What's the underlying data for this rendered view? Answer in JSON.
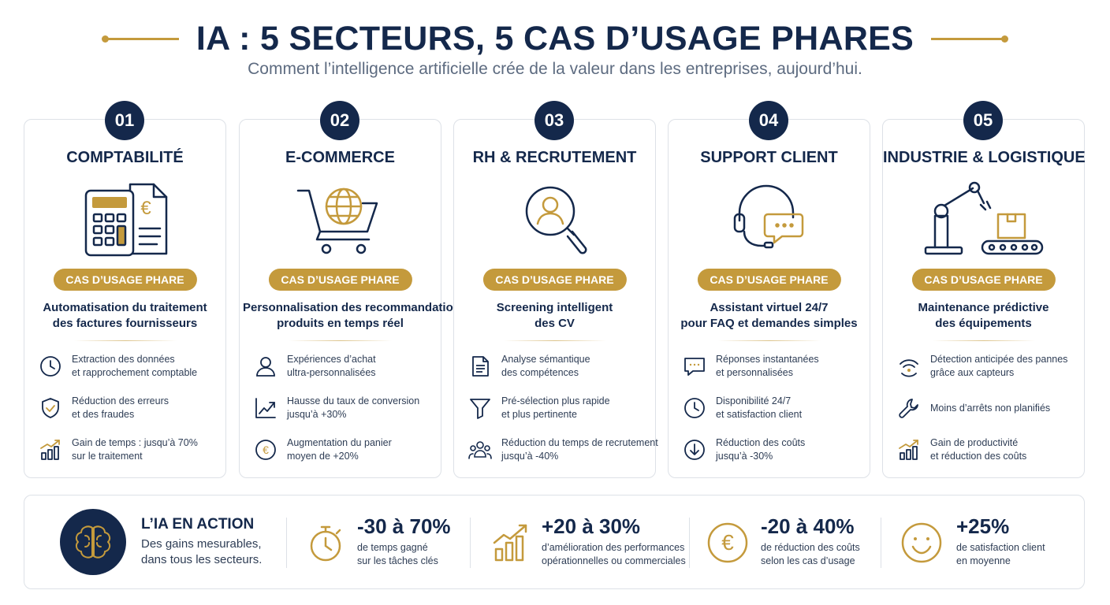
{
  "header": {
    "title": "IA : 5 SECTEURS, 5 CAS D’USAGE PHARES",
    "subtitle": "Comment l’intelligence artificielle crée de la valeur dans les entreprises, aujourd’hui."
  },
  "colors": {
    "navy": "#14284b",
    "gold": "#c49a3c",
    "text": "#2e3d55",
    "muted": "#5d6b80"
  },
  "sectors": [
    {
      "number": "01",
      "title": "COMPTABILITÉ",
      "illustration": "calculator-invoice-icon",
      "tag": "CAS D’USAGE PHARE",
      "use_case": [
        "Automatisation du traitement",
        "des factures fournisseurs"
      ],
      "features": [
        {
          "icon": "clock-icon",
          "lines": [
            "Extraction des données",
            "et rapprochement comptable"
          ]
        },
        {
          "icon": "shield-check-icon",
          "lines": [
            "Réduction des erreurs",
            "et des fraudes"
          ]
        },
        {
          "icon": "growth-bars-icon",
          "lines": [
            "Gain de temps : jusqu’à 70%",
            "sur le traitement"
          ]
        }
      ]
    },
    {
      "number": "02",
      "title": "E-COMMERCE",
      "illustration": "cart-globe-icon",
      "tag": "CAS D’USAGE PHARE",
      "use_case": [
        "Personnalisation des recommandations",
        "produits en temps réel"
      ],
      "features": [
        {
          "icon": "user-icon",
          "lines": [
            "Expériences d’achat",
            "ultra-personnalisées"
          ]
        },
        {
          "icon": "trend-up-icon",
          "lines": [
            "Hausse du taux de conversion",
            "jusqu’à +30%"
          ]
        },
        {
          "icon": "euro-icon",
          "lines": [
            "Augmentation du panier",
            "moyen de +20%"
          ]
        }
      ]
    },
    {
      "number": "03",
      "title": "RH & RECRUTEMENT",
      "illustration": "magnifier-person-icon",
      "tag": "CAS D’USAGE PHARE",
      "use_case": [
        "Screening intelligent",
        "des CV"
      ],
      "features": [
        {
          "icon": "document-icon",
          "lines": [
            "Analyse sémantique",
            "des compétences"
          ]
        },
        {
          "icon": "filter-icon",
          "lines": [
            "Pré-sélection plus rapide",
            "et plus pertinente"
          ]
        },
        {
          "icon": "people-icon",
          "lines": [
            "Réduction du temps de recrutement",
            "jusqu’à -40%"
          ]
        }
      ]
    },
    {
      "number": "04",
      "title": "SUPPORT CLIENT",
      "illustration": "headset-chat-icon",
      "tag": "CAS D’USAGE PHARE",
      "use_case": [
        "Assistant virtuel 24/7",
        "pour FAQ et demandes simples"
      ],
      "features": [
        {
          "icon": "chat-bubble-icon",
          "lines": [
            "Réponses instantanées",
            "et personnalisées"
          ]
        },
        {
          "icon": "clock-icon",
          "lines": [
            "Disponibilité 24/7",
            "et satisfaction client"
          ]
        },
        {
          "icon": "arrow-down-circle-icon",
          "lines": [
            "Réduction des coûts",
            "jusqu’à -30%"
          ]
        }
      ]
    },
    {
      "number": "05",
      "title": "INDUSTRIE & LOGISTIQUE",
      "illustration": "robot-arm-conveyor-icon",
      "tag": "CAS D’USAGE PHARE",
      "use_case": [
        "Maintenance prédictive",
        "des équipements"
      ],
      "features": [
        {
          "icon": "sensor-icon",
          "lines": [
            "Détection anticipée des pannes",
            "grâce aux capteurs"
          ]
        },
        {
          "icon": "wrench-icon",
          "lines": [
            "Moins d’arrêts non planifiés"
          ]
        },
        {
          "icon": "growth-bars-icon",
          "lines": [
            "Gain de productivité",
            "et réduction des coûts"
          ]
        }
      ]
    }
  ],
  "banner": {
    "title": "L’IA EN ACTION",
    "subtitle": [
      "Des gains mesurables,",
      "dans tous les secteurs."
    ],
    "icon": "brain-icon",
    "stats": [
      {
        "icon": "stopwatch-icon",
        "value": "-30 à 70%",
        "lines": [
          "de temps gagné",
          "sur les tâches clés"
        ]
      },
      {
        "icon": "growth-chart-icon",
        "value": "+20 à 30%",
        "lines": [
          "d’amélioration des performances",
          "opérationnelles ou commerciales"
        ]
      },
      {
        "icon": "euro-circle-icon",
        "value": "-20 à 40%",
        "lines": [
          "de réduction des coûts",
          "selon les cas d’usage"
        ]
      },
      {
        "icon": "smiley-icon",
        "value": "+25%",
        "lines": [
          "de satisfaction client",
          "en moyenne"
        ]
      }
    ]
  }
}
